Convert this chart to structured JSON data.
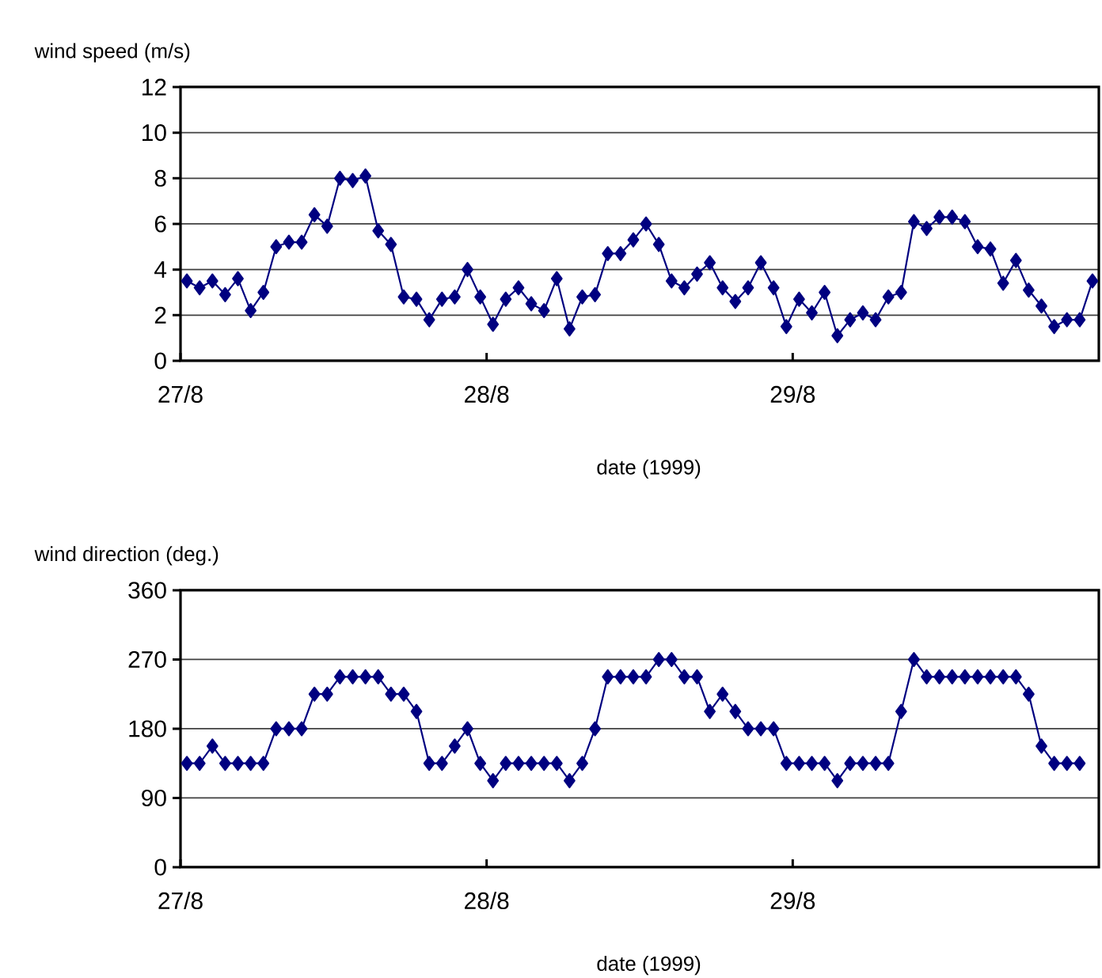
{
  "chart_data": [
    {
      "type": "line",
      "xlabel": "date (1999)",
      "ylabel": "wind speed (m/s)",
      "color": "#000080",
      "marker": "diamond",
      "line_style": "solid",
      "grid": "y",
      "x": [
        "1999-08-27T00:30",
        "1999-08-27T01:30",
        "1999-08-27T02:30",
        "1999-08-27T03:30",
        "1999-08-27T04:30",
        "1999-08-27T05:30",
        "1999-08-27T06:30",
        "1999-08-27T07:30",
        "1999-08-27T08:30",
        "1999-08-27T09:30",
        "1999-08-27T10:30",
        "1999-08-27T11:30",
        "1999-08-27T12:30",
        "1999-08-27T13:30",
        "1999-08-27T14:30",
        "1999-08-27T15:30",
        "1999-08-27T16:30",
        "1999-08-27T17:30",
        "1999-08-27T18:30",
        "1999-08-27T19:30",
        "1999-08-27T20:30",
        "1999-08-27T21:30",
        "1999-08-27T22:30",
        "1999-08-27T23:30",
        "1999-08-28T00:30",
        "1999-08-28T01:30",
        "1999-08-28T02:30",
        "1999-08-28T03:30",
        "1999-08-28T04:30",
        "1999-08-28T05:30",
        "1999-08-28T06:30",
        "1999-08-28T07:30",
        "1999-08-28T08:30",
        "1999-08-28T09:30",
        "1999-08-28T10:30",
        "1999-08-28T11:30",
        "1999-08-28T12:30",
        "1999-08-28T13:30",
        "1999-08-28T14:30",
        "1999-08-28T15:30",
        "1999-08-28T16:30",
        "1999-08-28T17:30",
        "1999-08-28T18:30",
        "1999-08-28T19:30",
        "1999-08-28T20:30",
        "1999-08-28T21:30",
        "1999-08-28T22:30",
        "1999-08-28T23:30",
        "1999-08-29T00:30",
        "1999-08-29T01:30",
        "1999-08-29T02:30",
        "1999-08-29T03:30",
        "1999-08-29T04:30",
        "1999-08-29T05:30",
        "1999-08-29T06:30",
        "1999-08-29T07:30",
        "1999-08-29T08:30",
        "1999-08-29T09:30",
        "1999-08-29T10:30",
        "1999-08-29T11:30",
        "1999-08-29T12:30",
        "1999-08-29T13:30",
        "1999-08-29T14:30",
        "1999-08-29T15:30",
        "1999-08-29T16:30",
        "1999-08-29T17:30",
        "1999-08-29T18:30",
        "1999-08-29T19:30",
        "1999-08-29T20:30",
        "1999-08-29T21:30",
        "1999-08-29T22:30",
        "1999-08-29T23:30"
      ],
      "values": [
        3.5,
        3.2,
        3.5,
        2.9,
        3.6,
        2.2,
        3.0,
        5.0,
        5.2,
        5.2,
        6.4,
        5.9,
        8.0,
        7.9,
        8.1,
        5.7,
        5.1,
        2.8,
        2.7,
        1.8,
        2.7,
        2.8,
        4.0,
        2.8,
        1.6,
        2.7,
        3.2,
        2.5,
        2.2,
        3.6,
        1.4,
        2.8,
        2.9,
        4.7,
        4.7,
        5.3,
        6.0,
        5.1,
        3.5,
        3.2,
        3.8,
        4.3,
        3.2,
        2.6,
        3.2,
        4.3,
        3.2,
        1.5,
        2.7,
        2.1,
        3.0,
        1.1,
        1.8,
        2.1,
        1.8,
        2.8,
        3.0,
        6.1,
        5.8,
        6.3,
        6.3,
        6.1,
        5.0,
        4.9,
        3.4,
        4.4,
        3.1,
        2.4,
        1.5,
        1.8,
        1.8,
        3.5
      ],
      "xlim": [
        "1999-08-27",
        "1999-08-30"
      ],
      "xticks": [
        {
          "value": "1999-08-27",
          "label": "27/8"
        },
        {
          "value": "1999-08-28",
          "label": "28/8"
        },
        {
          "value": "1999-08-29",
          "label": "29/8"
        }
      ],
      "ylim": [
        0,
        12
      ],
      "yticks": [
        0,
        2,
        4,
        6,
        8,
        10,
        12
      ]
    },
    {
      "type": "line",
      "xlabel": "date (1999)",
      "ylabel": "wind direction (deg.)",
      "color": "#000080",
      "marker": "diamond",
      "line_style": "solid",
      "grid": "y",
      "x": [
        "1999-08-27T00:30",
        "1999-08-27T01:30",
        "1999-08-27T02:30",
        "1999-08-27T03:30",
        "1999-08-27T04:30",
        "1999-08-27T05:30",
        "1999-08-27T06:30",
        "1999-08-27T07:30",
        "1999-08-27T08:30",
        "1999-08-27T09:30",
        "1999-08-27T10:30",
        "1999-08-27T11:30",
        "1999-08-27T12:30",
        "1999-08-27T13:30",
        "1999-08-27T14:30",
        "1999-08-27T15:30",
        "1999-08-27T16:30",
        "1999-08-27T17:30",
        "1999-08-27T18:30",
        "1999-08-27T19:30",
        "1999-08-27T20:30",
        "1999-08-27T21:30",
        "1999-08-27T22:30",
        "1999-08-27T23:30",
        "1999-08-28T00:30",
        "1999-08-28T01:30",
        "1999-08-28T02:30",
        "1999-08-28T03:30",
        "1999-08-28T04:30",
        "1999-08-28T05:30",
        "1999-08-28T06:30",
        "1999-08-28T07:30",
        "1999-08-28T08:30",
        "1999-08-28T09:30",
        "1999-08-28T10:30",
        "1999-08-28T11:30",
        "1999-08-28T12:30",
        "1999-08-28T13:30",
        "1999-08-28T14:30",
        "1999-08-28T15:30",
        "1999-08-28T16:30",
        "1999-08-28T17:30",
        "1999-08-28T18:30",
        "1999-08-28T19:30",
        "1999-08-28T20:30",
        "1999-08-28T21:30",
        "1999-08-28T22:30",
        "1999-08-28T23:30",
        "1999-08-29T00:30",
        "1999-08-29T01:30",
        "1999-08-29T02:30",
        "1999-08-29T03:30",
        "1999-08-29T04:30",
        "1999-08-29T05:30",
        "1999-08-29T06:30",
        "1999-08-29T07:30",
        "1999-08-29T08:30",
        "1999-08-29T09:30",
        "1999-08-29T10:30",
        "1999-08-29T11:30",
        "1999-08-29T12:30",
        "1999-08-29T13:30",
        "1999-08-29T14:30",
        "1999-08-29T15:30",
        "1999-08-29T16:30",
        "1999-08-29T17:30",
        "1999-08-29T18:30",
        "1999-08-29T19:30",
        "1999-08-29T20:30",
        "1999-08-29T21:30",
        "1999-08-29T22:30"
      ],
      "values": [
        135,
        135,
        157.5,
        135,
        135,
        135,
        135,
        180,
        180,
        180,
        225,
        225,
        247.5,
        247.5,
        247.5,
        247.5,
        225,
        225,
        202.5,
        135,
        135,
        157.5,
        180,
        135,
        112.5,
        135,
        135,
        135,
        135,
        135,
        112.5,
        135,
        180,
        247.5,
        247.5,
        247.5,
        247.5,
        270,
        270,
        247.5,
        247.5,
        202.5,
        225,
        202.5,
        180,
        180,
        180,
        135,
        135,
        135,
        135,
        112.5,
        135,
        135,
        135,
        135,
        202.5,
        270,
        247.5,
        247.5,
        247.5,
        247.5,
        247.5,
        247.5,
        247.5,
        247.5,
        225,
        157.5,
        135,
        135,
        135
      ],
      "xlim": [
        "1999-08-27",
        "1999-08-30"
      ],
      "xticks": [
        {
          "value": "1999-08-27",
          "label": "27/8"
        },
        {
          "value": "1999-08-28",
          "label": "28/8"
        },
        {
          "value": "1999-08-29",
          "label": "29/8"
        }
      ],
      "ylim": [
        0,
        360
      ],
      "yticks": [
        0,
        90,
        180,
        270,
        360
      ]
    }
  ]
}
